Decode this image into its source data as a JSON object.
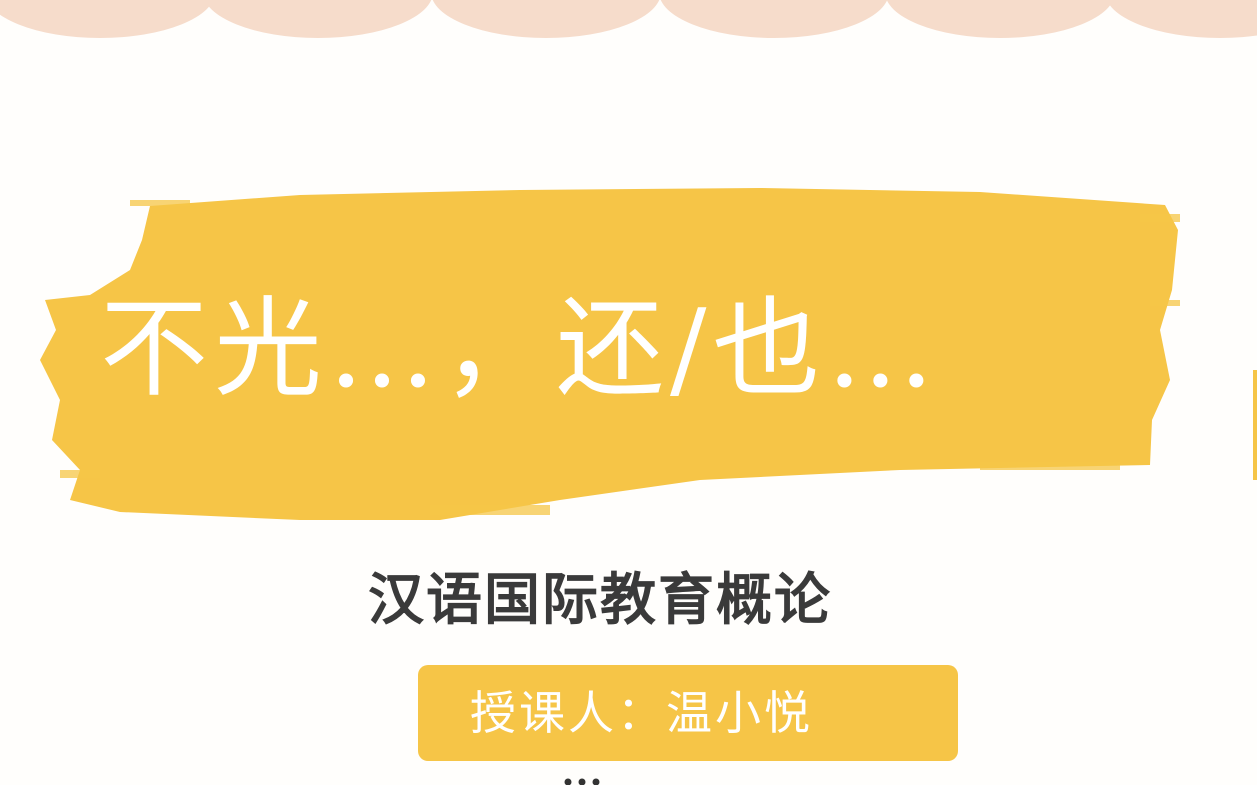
{
  "slide": {
    "title": "不光…，还/也…",
    "subtitle": "汉语国际教育概论",
    "teacher": "授课人：温小悦"
  },
  "colors": {
    "brush_yellow": "#f6c547",
    "scallop_peach": "#f6dccb",
    "subtitle_text": "#3a3a3a",
    "title_text": "#ffffff"
  }
}
